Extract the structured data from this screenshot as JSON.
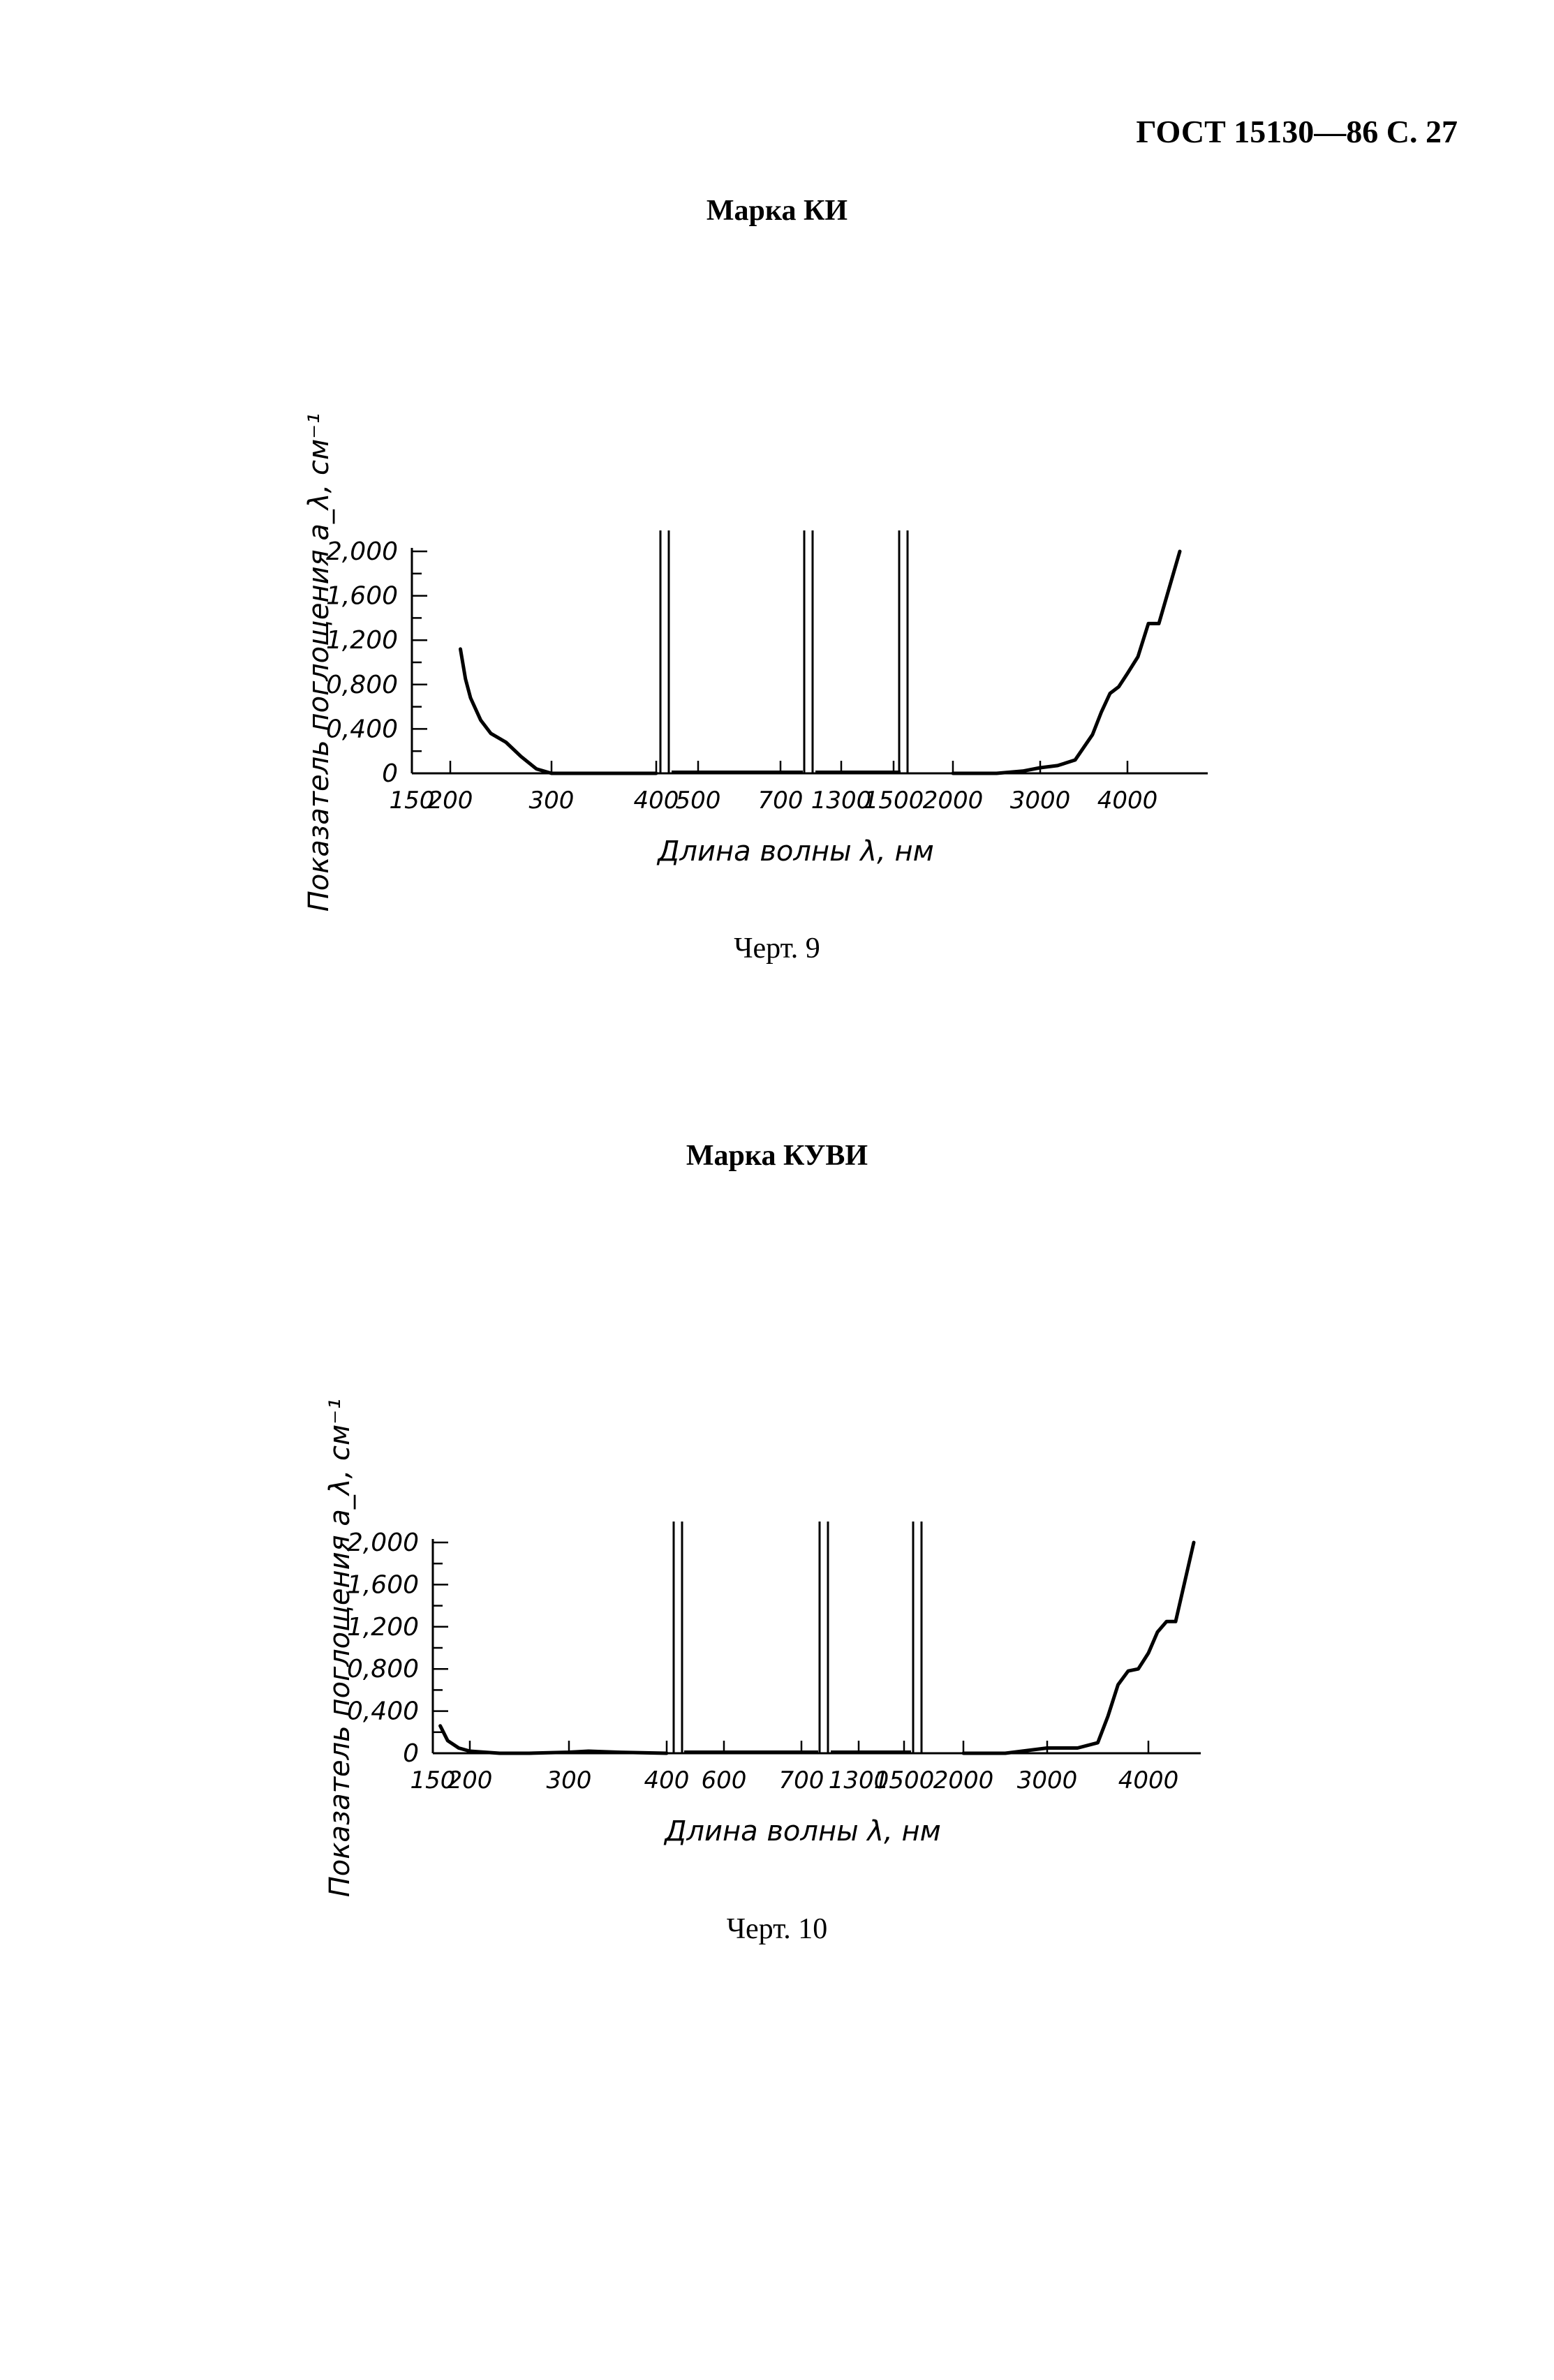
{
  "header": {
    "standard": "ГОСТ 15130—86 С. 27"
  },
  "chart_data": [
    {
      "type": "line",
      "title": "Марка КИ",
      "caption": "Черт. 9",
      "ylabel": "Показатель поглощения a_λ, см⁻¹",
      "xlabel": "Длина волны λ, нм",
      "y_ticks": [
        "2,000",
        "1,600",
        "1,200",
        "0,800",
        "0,400",
        "0"
      ],
      "x_ticks": [
        "150",
        "200",
        "300",
        "400",
        "500",
        "700",
        "1300",
        "1500",
        "2000",
        "3000",
        "4000"
      ],
      "ylim": [
        0,
        2.0
      ],
      "axis_breaks": [
        "between 400 and 500",
        "between 700 and 1300",
        "between 1500 and 2000"
      ],
      "series": [
        {
          "segment": "150-400",
          "x": [
            210,
            215,
            220,
            230,
            240,
            255,
            270,
            285,
            300,
            320,
            400
          ],
          "y": [
            1.12,
            0.85,
            0.68,
            0.48,
            0.36,
            0.28,
            0.15,
            0.04,
            0.0,
            0.0,
            0.0
          ]
        },
        {
          "segment": "2000-4000",
          "x": [
            2000,
            2500,
            2800,
            3000,
            3200,
            3400,
            3600,
            3700,
            3800,
            3900,
            4000,
            4100,
            4200,
            4300,
            4500
          ],
          "y": [
            0.0,
            0.0,
            0.02,
            0.05,
            0.07,
            0.12,
            0.35,
            0.55,
            0.72,
            0.78,
            0.9,
            1.05,
            1.35,
            1.35,
            2.0
          ]
        }
      ]
    },
    {
      "type": "line",
      "title": "Марка КУВИ",
      "caption": "Черт. 10",
      "ylabel": "Показатель поглощения a_λ, см⁻¹",
      "xlabel": "Длина волны λ, нм",
      "y_ticks": [
        "2,000",
        "1,600",
        "1,200",
        "0,800",
        "0,400",
        "0"
      ],
      "x_ticks": [
        "150",
        "200",
        "300",
        "400",
        "600",
        "700",
        "1300",
        "1500",
        "2000",
        "3000",
        "4000"
      ],
      "ylim": [
        0,
        2.0
      ],
      "axis_breaks": [
        "between 400 and 600",
        "between 700 and 1300",
        "between 1500 and 2000"
      ],
      "series": [
        {
          "segment": "150-400",
          "x": [
            160,
            170,
            185,
            200,
            230,
            260,
            300,
            320,
            350,
            400
          ],
          "y": [
            0.26,
            0.12,
            0.05,
            0.02,
            0.0,
            0.0,
            0.01,
            0.02,
            0.01,
            0.0
          ]
        },
        {
          "segment": "2000-4000",
          "x": [
            2000,
            2500,
            2800,
            3000,
            3300,
            3500,
            3600,
            3700,
            3800,
            3900,
            4000,
            4100,
            4200,
            4300,
            4500
          ],
          "y": [
            0.0,
            0.0,
            0.03,
            0.05,
            0.05,
            0.1,
            0.35,
            0.65,
            0.78,
            0.8,
            0.95,
            1.15,
            1.25,
            1.25,
            2.0
          ]
        }
      ]
    }
  ]
}
